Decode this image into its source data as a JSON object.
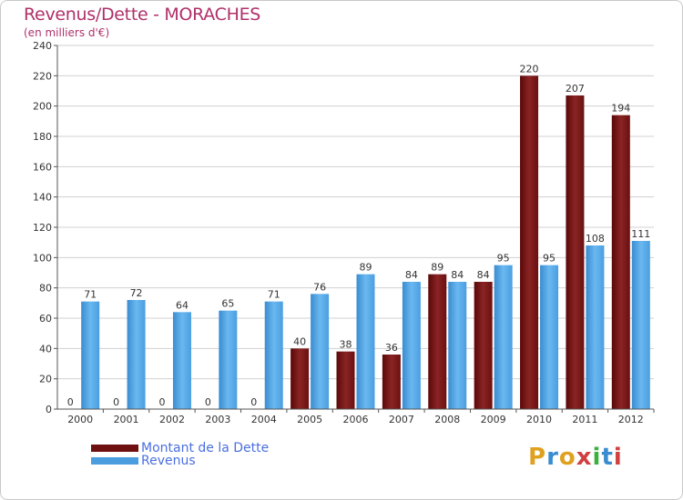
{
  "title": "Revenus/Dette - MORACHES",
  "subtitle": "(en milliers d'€)",
  "brand": "Proxiti",
  "colors": {
    "dette": "#6e1010",
    "dette_light": "#9a3030",
    "revenus": "#4a9ee0",
    "revenus_light": "#68b8f0",
    "axis_text": "#333333",
    "grid": "#d0d0d0",
    "title": "#b0306a",
    "legend_text": "#4a6fe0"
  },
  "chart_data": {
    "type": "bar",
    "categories": [
      "2000",
      "2001",
      "2002",
      "2003",
      "2004",
      "2005",
      "2006",
      "2007",
      "2008",
      "2009",
      "2010",
      "2011",
      "2012"
    ],
    "series": [
      {
        "name": "Montant de la Dette",
        "values": [
          0,
          0,
          0,
          0,
          0,
          40,
          38,
          36,
          89,
          84,
          220,
          207,
          194
        ]
      },
      {
        "name": "Revenus",
        "values": [
          71,
          72,
          64,
          65,
          71,
          76,
          89,
          84,
          84,
          95,
          95,
          108,
          111
        ]
      }
    ],
    "ylim": [
      0,
      240
    ],
    "yticks": [
      0,
      20,
      40,
      60,
      80,
      100,
      120,
      140,
      160,
      180,
      200,
      220,
      240
    ],
    "grid": true,
    "legend_position": "bottom-left"
  }
}
